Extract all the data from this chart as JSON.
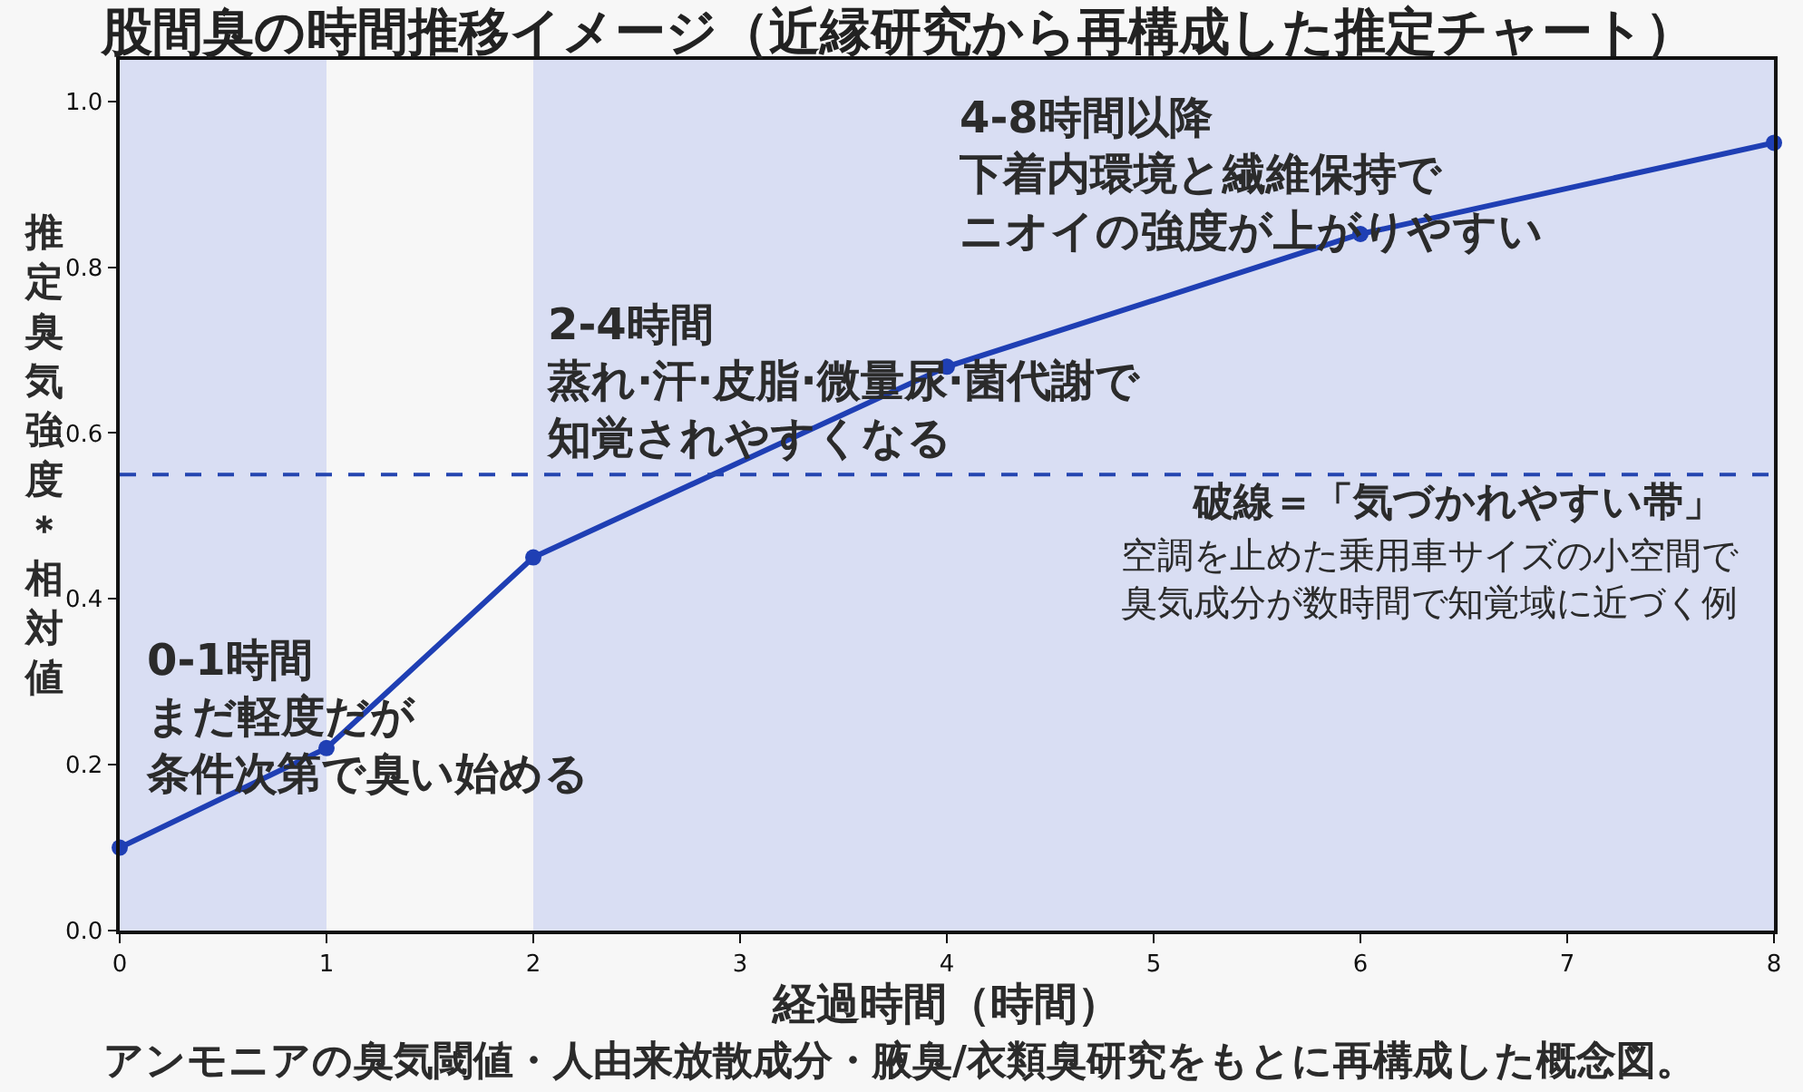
{
  "chart_data": {
    "type": "line",
    "title": "股間臭の時間推移イメージ（近縁研究から再構成した推定チャート）",
    "xlabel": "経過時間（時間）",
    "ylabel": "推定臭気強度＊相対値",
    "x": [
      0,
      1,
      2,
      4,
      6,
      8
    ],
    "series": [
      {
        "color": "#1f3fb4",
        "values": [
          0.1,
          0.22,
          0.45,
          0.68,
          0.84,
          0.95
        ]
      }
    ],
    "marker": "circle",
    "line_style": "solid",
    "xlim": [
      0,
      8
    ],
    "ylim": [
      0,
      1.05
    ],
    "xticks": [
      0,
      1,
      2,
      3,
      4,
      5,
      6,
      7,
      8
    ],
    "yticks": [
      {
        "value": 0,
        "label": "0.0"
      },
      0.2,
      0.4,
      0.6,
      0.8,
      {
        "value": 1,
        "label": "1.0"
      }
    ],
    "ref_lines": [
      {
        "axis": "y",
        "value": 0.55,
        "label": "破線＝「気づかれやすい帯」",
        "color": "#2445b0",
        "line_style": "dashed"
      }
    ],
    "bands": [
      {
        "axis": "x",
        "from": 0,
        "to": 1,
        "color": "#d9def3"
      },
      {
        "axis": "x",
        "from": 2,
        "to": 8,
        "color": "#d9def3"
      }
    ],
    "annotations": [
      "0-1時間まだ軽度だが条件次第で臭い始める",
      "2-4時間蒸れ·汗·皮脂·微量尿·菌代謝で知覚されやすくなる",
      "4-8時間以降下着内環境と繊維保持でニオイの強度が上がりやすい",
      "空調を止めた乗用車サイズの小空間で臭気成分が数時間で知覚域に近づく例",
      "アンモニアの臭気閾値・人由来放散成分・腋臭/衣類臭研究をもとに再構成した概念図。"
    ]
  }
}
